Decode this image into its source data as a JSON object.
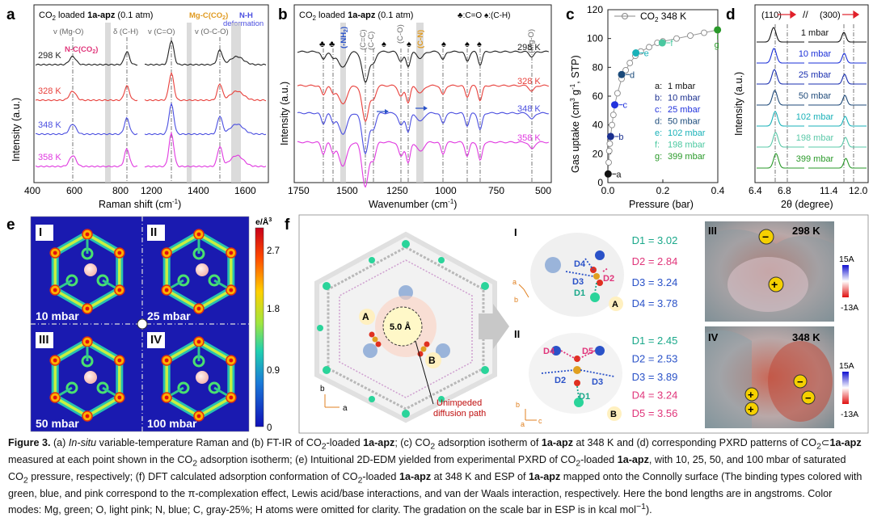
{
  "panels": {
    "a": {
      "letter": "a",
      "title_pre": "CO",
      "title_mid": " loaded ",
      "title_bold": "1a-apz",
      "title_post": " (0.1 atm)",
      "ylabel": "Intensity (a.u.)",
      "xlabel": "Raman shift (cm",
      "xlabel_tail": ")",
      "xticks": [
        "400",
        "800",
        "1200",
        "1600"
      ],
      "xtick_600": "600",
      "xtick_1400": "1400",
      "temps": [
        "298 K",
        "328 K",
        "348 K",
        "358 K"
      ],
      "temp_colors": [
        "#222222",
        "#e8413c",
        "#4b4fe0",
        "#e03ae0"
      ],
      "ann_vmgo": "v (Mg-O)",
      "ann_dch": "δ (C-H)",
      "ann_vcco": "v (C=O)",
      "ann_voco": "v (O-C-O)",
      "ann_nco2": "N-C(CO",
      "ann_mgco2": "Mg-C(CO",
      "ann_nh_1": "N-H",
      "ann_nh_2": "deformation",
      "ann_close": ")",
      "ann_sub2": "2"
    },
    "b": {
      "letter": "b",
      "title_pre": "CO",
      "title_mid": " loaded ",
      "title_bold": "1a-apz",
      "title_post": " (0.1 atm)",
      "legend": "♣:C=O  ♠:(C-H)",
      "ylabel": "Intensity (a.u.)",
      "xlabel": "Wavenumber (cm",
      "xlabel_tail": ")",
      "xticks": [
        "1750",
        "1500",
        "1250",
        "1000",
        "750",
        "500"
      ],
      "temps": [
        "298 K",
        "328 K",
        "348 K",
        "358 K"
      ],
      "labels_vert": [
        "(-NH",
        "(C=C)",
        "(C-C)",
        "(C-O)",
        "(C-N)",
        "(Mg-O)"
      ],
      "label_close": ")"
    },
    "c": {
      "letter": "c",
      "series": "CO",
      "series_tail": " 348 K",
      "ylabel": "Gas uptake (cm",
      "ylabel_tail": ", STP)",
      "xlabel": "Pressure (bar)",
      "ylim": [
        0,
        120
      ],
      "xlim": [
        0,
        0.4
      ],
      "yticks": [
        "0",
        "20",
        "40",
        "60",
        "80",
        "100",
        "120"
      ],
      "xticks": [
        "0.0",
        "0.2",
        "0.4"
      ],
      "legend": [
        {
          "key": "a:",
          "val": "1  mbar",
          "color": "#111111"
        },
        {
          "key": "b:",
          "val": "10 mbar",
          "color": "#1a2f8f"
        },
        {
          "key": "c:",
          "val": "25  mbar",
          "color": "#2233dd"
        },
        {
          "key": "d:",
          "val": "50  mbar",
          "color": "#1a4a7a"
        },
        {
          "key": "e:",
          "val": "102 mbar",
          "color": "#19b1b8"
        },
        {
          "key": "f:",
          "val": "198 mbar",
          "color": "#4ac8a0"
        },
        {
          "key": "g:",
          "val": "399 mbar",
          "color": "#2a9a2a"
        }
      ],
      "points": [
        "a",
        "b",
        "c",
        "d",
        "e",
        "f",
        "g"
      ]
    },
    "d": {
      "letter": "d",
      "ylabel": "Intensity (a.u.)",
      "xlabel": "2θ (degree)",
      "xticks": [
        "6.4",
        "6.8",
        "11.4",
        "12.0"
      ],
      "peak_left": "(110)",
      "peak_right": "(300)",
      "pressures": [
        "1 mbar",
        "10 mbar",
        "25 mbar",
        "50 mbar",
        "102 mbar",
        "198 mbar",
        "399 mbar"
      ],
      "pressure_colors": [
        "#111111",
        "#1a2fd8",
        "#1a2fb0",
        "#1f4a7a",
        "#19b1b8",
        "#5ac8a8",
        "#2a9a2a"
      ]
    },
    "e": {
      "letter": "e",
      "scale_title": "e/Å",
      "scale_sup": "3",
      "scale_ticks": [
        "2.7",
        "1.8",
        "0.9",
        "0"
      ],
      "maps": [
        {
          "roman": "I",
          "pressure": "10 mbar"
        },
        {
          "roman": "II",
          "pressure": "25 mbar"
        },
        {
          "roman": "III",
          "pressure": "50 mbar"
        },
        {
          "roman": "IV",
          "pressure": "100 mbar"
        }
      ]
    },
    "f": {
      "letter": "f",
      "pore": "5.0 Å",
      "site_a": "A",
      "site_b": "B",
      "diffusion_1": "Unimpeded",
      "diffusion_2": "diffusion path",
      "axis_a": "a",
      "axis_b": "b",
      "axis_c": "c",
      "detail_I": {
        "roman": "I",
        "labels": [
          "D4",
          "D3",
          "D2",
          "D1"
        ],
        "distances": [
          {
            "key": "D1",
            "val": "3.02",
            "color": "#1aa88a"
          },
          {
            "key": "D2",
            "val": "2.84",
            "color": "#e0357a"
          },
          {
            "key": "D3",
            "val": "3.24",
            "color": "#2a52c8"
          },
          {
            "key": "D4",
            "val": "3.78",
            "color": "#2a52c8"
          }
        ]
      },
      "detail_II": {
        "roman": "II",
        "labels": [
          "D4",
          "D5",
          "D2",
          "D3",
          "D1"
        ],
        "distances": [
          {
            "key": "D1",
            "val": "2.45",
            "color": "#1aa88a"
          },
          {
            "key": "D2",
            "val": "2.53",
            "color": "#2a52c8"
          },
          {
            "key": "D3",
            "val": "3.89",
            "color": "#2a52c8"
          },
          {
            "key": "D4",
            "val": "3.24",
            "color": "#e0357a"
          },
          {
            "key": "D5",
            "val": "3.56",
            "color": "#e0357a"
          }
        ]
      },
      "esp_III": {
        "roman": "III",
        "temp": "298 K",
        "scale_top": "15A",
        "scale_bottom": "-13A"
      },
      "esp_IV": {
        "roman": "IV",
        "temp": "348 K",
        "scale_top": "15A",
        "scale_bottom": "-13A"
      }
    }
  },
  "caption": {
    "label": "Figure 3.",
    "t1": " (a) ",
    "t2": "In-situ",
    "t3": " variable-temperature Raman and (b) FT-IR of CO",
    "t4": "-loaded ",
    "t5": "1a-apz",
    "t6": "; (c) CO",
    "t7": " adsorption isotherm of ",
    "t8": "1a-apz",
    "t9": " at 348 K and (d) corresponding PXRD patterns of CO",
    "t10": "⊂",
    "t11": "1a-apz",
    "t12": " measured at each point shown in the CO",
    "t13": " adsorption isotherm; (e) Intuitional 2D-EDM yielded from experimental PXRD of CO",
    "t14": "-loaded ",
    "t15": "1a-apz",
    "t16": ", with 10, 25, 50, and 100 mbar of saturated CO",
    "t17": " pressure, respectively; (f) DFT calculated adsorption conformation of CO",
    "t18": "-loaded ",
    "t19": "1a-apz",
    "t20": " at 348 K and ESP of ",
    "t21": "1a-apz",
    "t22": " mapped onto the Connolly surface (The binding types colored with green, blue, and pink correspond to the π-complexation effect, Lewis acid/base interactions, and van der Waals interaction, respectively. Here the bond lengths are in angstroms. Color modes: Mg, green; O, light pink; N, blue; C, gray-25%; H atoms were omitted for clarity. The gradation on the scale bar in ESP is in kcal mol",
    "t23": "−1",
    "t24": ").",
    "sub2": "2"
  }
}
